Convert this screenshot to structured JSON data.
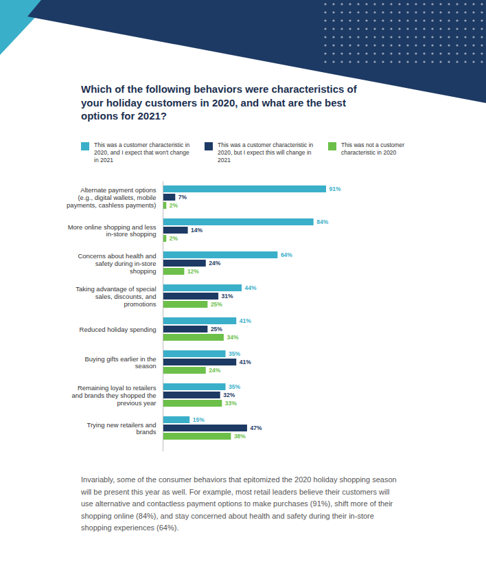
{
  "chart_data": {
    "type": "bar",
    "orientation": "horizontal",
    "title": "Which of the following behaviors were characteristics of your holiday customers in 2020, and what are the best options for 2021?",
    "legend": "top",
    "data_labels": true,
    "tick_labels": "y",
    "categories": [
      "Alternate payment options (e.g., digital wallets, mobile payments, cashless payments)",
      "More online shopping and less in-store shopping",
      "Concerns about health and safety during in-store shopping",
      "Taking advantage of special sales, discounts, and promotions",
      "Reduced holiday spending",
      "Buying gifts earlier in the season",
      "Remaining loyal to retailers and brands they shopped the previous year",
      "Trying new retailers and brands"
    ],
    "series": [
      {
        "name": "This was a customer characteristic in 2020, and I expect that won't change in 2021",
        "color": "#3aafc9",
        "values": [
          91,
          84,
          64,
          44,
          41,
          35,
          35,
          15
        ],
        "value_labels": [
          "91%",
          "84%",
          "64%",
          "44%",
          "41%",
          "35%",
          "35%",
          "15%"
        ]
      },
      {
        "name": "This was a customer characteristic in 2020, but I expect this will change in 2021",
        "color": "#1d3a64",
        "values": [
          7,
          14,
          24,
          31,
          25,
          41,
          32,
          47
        ],
        "value_labels": [
          "7%",
          "14%",
          "24%",
          "31%",
          "25%",
          "41%",
          "32%",
          "47%"
        ]
      },
      {
        "name": "This was not a customer characteristic in 2020",
        "color": "#6cc04a",
        "values": [
          2,
          2,
          12,
          25,
          34,
          24,
          33,
          38
        ],
        "value_labels": [
          "2%",
          "2%",
          "12%",
          "25%",
          "34%",
          "24%",
          "33%",
          "38%"
        ]
      }
    ],
    "caption": "Invariably, some of the consumer behaviors that epitomized the 2020 holiday shopping season will be present this year as well. For example, most retail leaders believe their customers will use alternative and contactless payment options to make purchases (91%), shift more of their shopping online (84%), and stay concerned about health and safety during their in-store shopping experiences (64%)."
  }
}
